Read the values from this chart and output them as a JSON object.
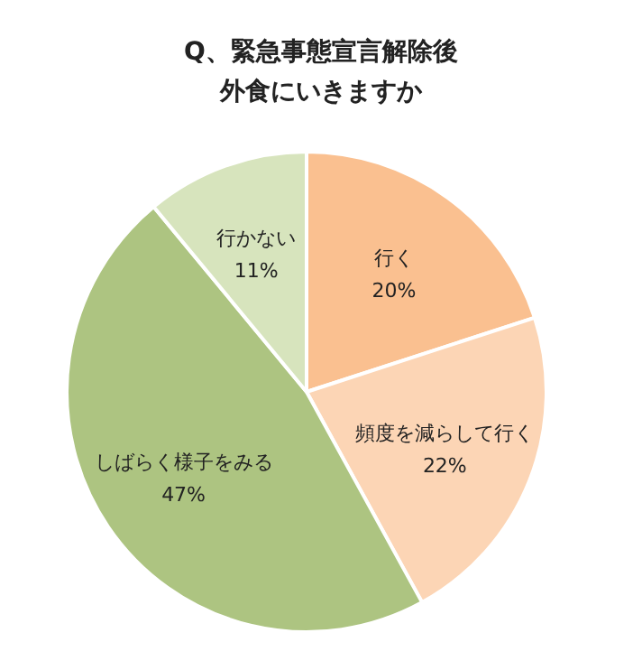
{
  "chart_data": {
    "type": "pie",
    "title": "Q、緊急事態宣言解除後",
    "subtitle": "外食にいきますか",
    "categories": [
      "行く",
      "頻度を減らして行く",
      "しばらく様子をみる",
      "行かない"
    ],
    "values": [
      20,
      22,
      47,
      11
    ],
    "value_labels": [
      "20%",
      "22%",
      "47%",
      "11%"
    ],
    "colors": [
      "#fac090",
      "#fcd5b5",
      "#adc481",
      "#d7e4bd"
    ]
  }
}
